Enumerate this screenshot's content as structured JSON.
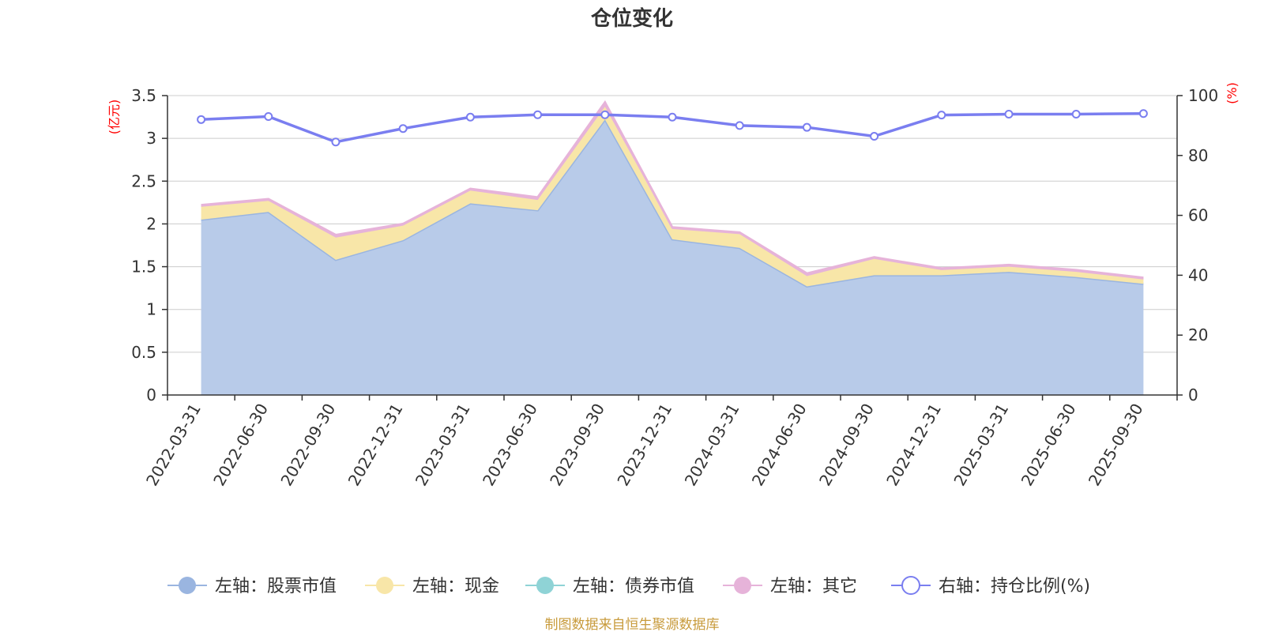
{
  "title": "仓位变化",
  "source": "制图数据来自恒生聚源数据库",
  "colors": {
    "stock": "#9ab5e0",
    "stock_fill": "#b8cbe9",
    "cash": "#f8e6a8",
    "bond": "#8fd3d6",
    "other": "#e6b3d9",
    "ratio": "#7a7ef0",
    "grid": "#cccccc",
    "axis": "#333333",
    "unit": "#ff0000",
    "source": "#c89b3c"
  },
  "chart_data": {
    "type": "area",
    "title": "仓位变化",
    "categories": [
      "2022-03-31",
      "2022-06-30",
      "2022-09-30",
      "2022-12-31",
      "2023-03-31",
      "2023-06-30",
      "2023-09-30",
      "2023-12-31",
      "2024-03-31",
      "2024-06-30",
      "2024-09-30",
      "2024-12-31",
      "2025-03-31",
      "2025-06-30",
      "2025-09-30"
    ],
    "left_axis": {
      "unit": "(亿元)",
      "ylim": [
        0,
        3.5
      ],
      "ticks": [
        "0",
        "0.5",
        "1",
        "1.5",
        "2",
        "2.5",
        "3",
        "3.5"
      ]
    },
    "right_axis": {
      "unit": "(%)",
      "ylim": [
        0,
        100
      ],
      "ticks": [
        "0",
        "20",
        "40",
        "60",
        "80",
        "100"
      ]
    },
    "series": [
      {
        "name": "左轴：股票市值",
        "axis": "left",
        "stacked": true,
        "values": [
          2.05,
          2.14,
          1.58,
          1.81,
          2.24,
          2.16,
          3.22,
          1.82,
          1.72,
          1.27,
          1.4,
          1.4,
          1.44,
          1.38,
          1.3
        ]
      },
      {
        "name": "左轴：现金",
        "axis": "left",
        "stacked": true,
        "values": [
          0.15,
          0.13,
          0.26,
          0.17,
          0.15,
          0.12,
          0.15,
          0.12,
          0.16,
          0.12,
          0.19,
          0.06,
          0.06,
          0.06,
          0.05
        ]
      },
      {
        "name": "左轴：债券市值",
        "axis": "left",
        "stacked": true,
        "values": [
          0,
          0,
          0,
          0,
          0,
          0,
          0,
          0,
          0,
          0,
          0,
          0,
          0,
          0,
          0
        ]
      },
      {
        "name": "左轴：其它",
        "axis": "left",
        "stacked": true,
        "values": [
          0.02,
          0.02,
          0.03,
          0.02,
          0.02,
          0.03,
          0.05,
          0.02,
          0.02,
          0.03,
          0.02,
          0.02,
          0.02,
          0.02,
          0.02
        ]
      },
      {
        "name": "右轴：持仓比例(%)",
        "axis": "right",
        "type": "line",
        "values": [
          92.0,
          93.0,
          84.5,
          89.0,
          92.8,
          93.6,
          93.6,
          92.8,
          90.0,
          89.4,
          86.4,
          93.5,
          93.8,
          93.8,
          94.0
        ]
      }
    ],
    "legend_position": "bottom"
  }
}
